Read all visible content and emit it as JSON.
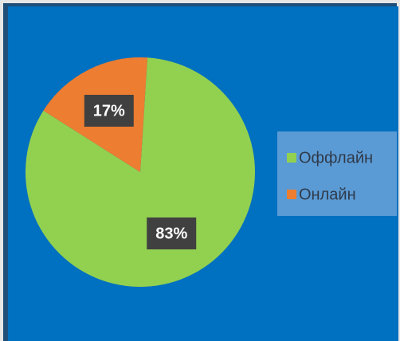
{
  "chart_data": {
    "type": "pie",
    "categories": [
      "Оффлайн",
      "Онлайн"
    ],
    "values": [
      83,
      17
    ],
    "value_labels": [
      "83%",
      "17%"
    ],
    "colors": [
      "#92d050",
      "#ed7d31"
    ]
  }
}
